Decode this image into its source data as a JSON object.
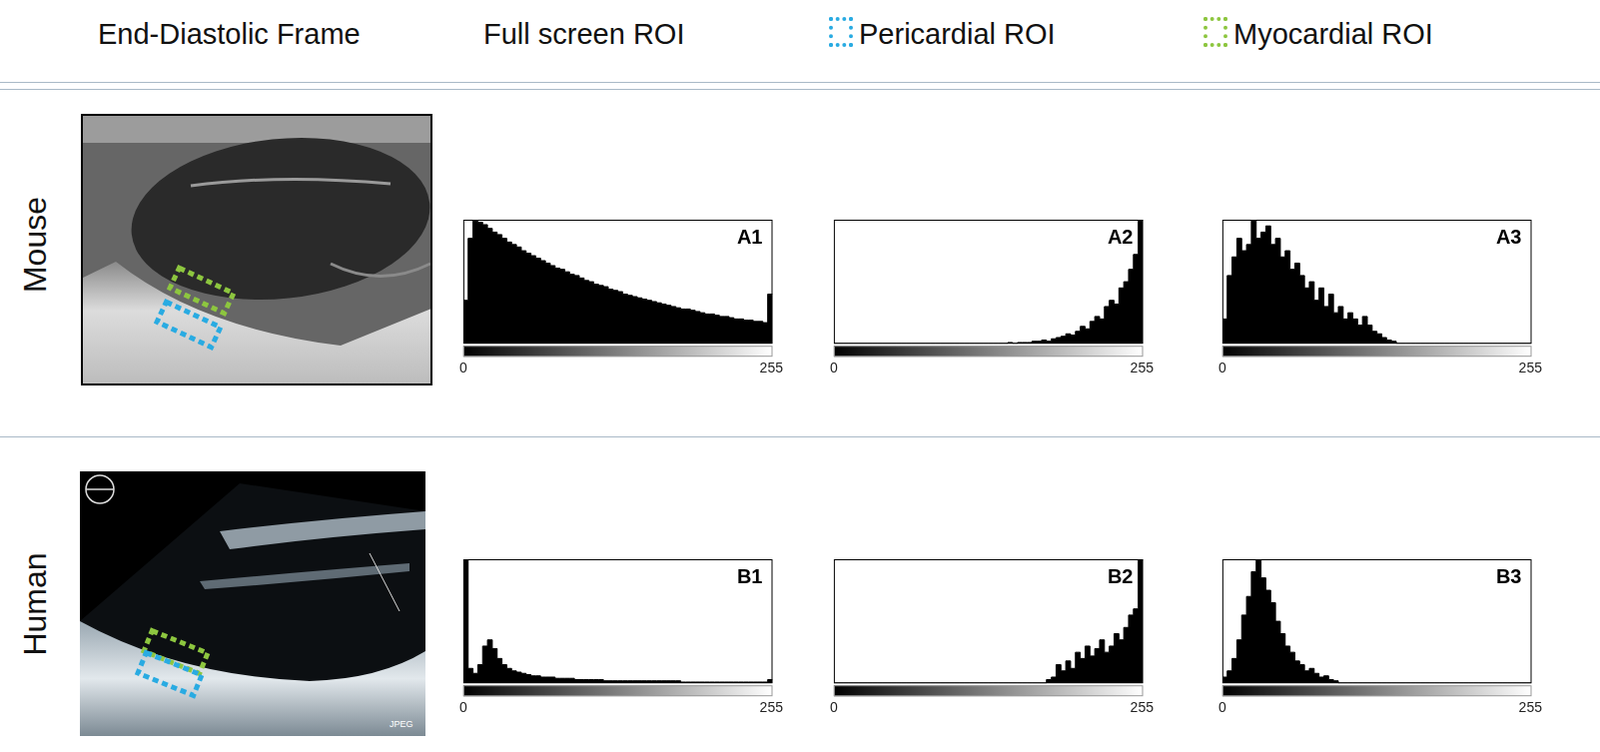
{
  "header": {
    "columns": [
      {
        "text": "End-Diastolic Frame"
      },
      {
        "text": "Full screen ROI"
      },
      {
        "text": "Pericardial ROI",
        "color": "#29abe2"
      },
      {
        "text": "Myocardial ROI",
        "color": "#8dc63f"
      }
    ]
  },
  "rows": [
    {
      "label": "Mouse"
    },
    {
      "label": "Human",
      "image_text": "JPEG"
    }
  ],
  "chart_data": [
    {
      "type": "histogram",
      "title": "A1",
      "color": "#000000",
      "grid": false,
      "tick_labels": "x",
      "xlim": [
        0,
        256
      ],
      "xticks": [
        0,
        255
      ],
      "ylim": [
        0,
        100
      ],
      "bins": [
        0,
        4,
        8,
        12,
        16,
        20,
        24,
        28,
        32,
        36,
        40,
        44,
        48,
        52,
        56,
        60,
        64,
        68,
        72,
        76,
        80,
        84,
        88,
        92,
        96,
        100,
        104,
        108,
        112,
        116,
        120,
        124,
        128,
        132,
        136,
        140,
        144,
        148,
        152,
        156,
        160,
        164,
        168,
        172,
        176,
        180,
        184,
        188,
        192,
        196,
        200,
        204,
        208,
        212,
        216,
        220,
        224,
        228,
        232,
        236,
        240,
        244,
        248,
        252,
        256
      ],
      "counts": [
        35,
        85,
        100,
        98,
        96,
        93,
        90,
        88,
        85,
        82,
        80,
        78,
        75,
        73,
        71,
        69,
        67,
        65,
        63,
        61,
        60,
        58,
        56,
        55,
        53,
        51,
        50,
        48,
        47,
        46,
        44,
        43,
        42,
        40,
        39,
        38,
        37,
        36,
        35,
        34,
        33,
        32,
        31,
        30,
        29,
        28,
        28,
        27,
        26,
        25,
        24,
        24,
        23,
        22,
        22,
        21,
        20,
        20,
        19,
        19,
        18,
        18,
        17,
        40
      ]
    },
    {
      "type": "histogram",
      "title": "A2",
      "color": "#000000",
      "grid": false,
      "tick_labels": "x",
      "xlim": [
        0,
        256
      ],
      "xticks": [
        0,
        255
      ],
      "ylim": [
        0,
        100
      ],
      "bins": [
        0,
        4,
        8,
        12,
        16,
        20,
        24,
        28,
        32,
        36,
        40,
        44,
        48,
        52,
        56,
        60,
        64,
        68,
        72,
        76,
        80,
        84,
        88,
        92,
        96,
        100,
        104,
        108,
        112,
        116,
        120,
        124,
        128,
        132,
        136,
        140,
        144,
        148,
        152,
        156,
        160,
        164,
        168,
        172,
        176,
        180,
        184,
        188,
        192,
        196,
        200,
        204,
        208,
        212,
        216,
        220,
        224,
        228,
        232,
        236,
        240,
        244,
        248,
        252,
        256
      ],
      "counts": [
        0,
        0,
        0,
        0,
        0,
        0,
        0,
        0,
        0,
        0,
        0,
        0,
        0,
        0,
        0,
        0,
        0,
        0,
        0,
        0,
        0,
        0,
        0,
        0,
        0,
        0,
        0,
        0,
        0,
        0,
        0,
        0,
        0,
        0,
        0,
        0,
        1,
        0,
        1,
        1,
        1,
        2,
        2,
        3,
        2,
        4,
        5,
        6,
        8,
        7,
        10,
        14,
        12,
        18,
        22,
        20,
        30,
        35,
        32,
        45,
        50,
        60,
        72,
        100
      ]
    },
    {
      "type": "histogram",
      "title": "A3",
      "color": "#000000",
      "grid": false,
      "tick_labels": "x",
      "xlim": [
        0,
        256
      ],
      "xticks": [
        0,
        255
      ],
      "ylim": [
        0,
        100
      ],
      "bins": [
        0,
        4,
        8,
        12,
        16,
        20,
        24,
        28,
        32,
        36,
        40,
        44,
        48,
        52,
        56,
        60,
        64,
        68,
        72,
        76,
        80,
        84,
        88,
        92,
        96,
        100,
        104,
        108,
        112,
        116,
        120,
        124,
        128,
        132,
        136,
        140,
        144,
        148,
        152,
        156,
        160,
        164,
        168,
        172,
        176,
        180,
        184,
        188,
        192,
        196,
        200,
        204,
        208,
        212,
        216,
        220,
        224,
        228,
        232,
        236,
        240,
        244,
        248,
        252,
        256
      ],
      "counts": [
        20,
        55,
        70,
        85,
        75,
        80,
        100,
        85,
        90,
        95,
        80,
        85,
        70,
        75,
        60,
        65,
        55,
        45,
        50,
        35,
        45,
        30,
        40,
        25,
        30,
        20,
        25,
        20,
        15,
        22,
        15,
        10,
        8,
        5,
        3,
        2,
        0,
        0,
        0,
        0,
        0,
        0,
        0,
        0,
        0,
        0,
        0,
        0,
        0,
        0,
        0,
        0,
        0,
        0,
        0,
        0,
        0,
        0,
        0,
        0,
        0,
        0,
        0,
        0
      ]
    },
    {
      "type": "histogram",
      "title": "B1",
      "color": "#000000",
      "grid": false,
      "tick_labels": "x",
      "xlim": [
        0,
        256
      ],
      "xticks": [
        0,
        255
      ],
      "ylim": [
        0,
        100
      ],
      "bins": [
        0,
        4,
        8,
        12,
        16,
        20,
        24,
        28,
        32,
        36,
        40,
        44,
        48,
        52,
        56,
        60,
        64,
        68,
        72,
        76,
        80,
        84,
        88,
        92,
        96,
        100,
        104,
        108,
        112,
        116,
        120,
        124,
        128,
        132,
        136,
        140,
        144,
        148,
        152,
        156,
        160,
        164,
        168,
        172,
        176,
        180,
        184,
        188,
        192,
        196,
        200,
        204,
        208,
        212,
        216,
        220,
        224,
        228,
        232,
        236,
        240,
        244,
        248,
        252,
        256
      ],
      "counts": [
        100,
        12,
        8,
        15,
        30,
        35,
        28,
        20,
        15,
        12,
        10,
        9,
        8,
        7,
        6,
        6,
        5,
        5,
        5,
        4,
        4,
        4,
        4,
        3,
        3,
        3,
        3,
        3,
        3,
        2,
        2,
        2,
        2,
        2,
        2,
        2,
        2,
        2,
        2,
        2,
        2,
        2,
        2,
        2,
        2,
        1,
        1,
        1,
        1,
        1,
        1,
        1,
        1,
        1,
        1,
        1,
        1,
        1,
        1,
        1,
        1,
        1,
        1,
        3
      ]
    },
    {
      "type": "histogram",
      "title": "B2",
      "color": "#000000",
      "grid": false,
      "tick_labels": "x",
      "xlim": [
        0,
        256
      ],
      "xticks": [
        0,
        255
      ],
      "ylim": [
        0,
        100
      ],
      "bins": [
        0,
        4,
        8,
        12,
        16,
        20,
        24,
        28,
        32,
        36,
        40,
        44,
        48,
        52,
        56,
        60,
        64,
        68,
        72,
        76,
        80,
        84,
        88,
        92,
        96,
        100,
        104,
        108,
        112,
        116,
        120,
        124,
        128,
        132,
        136,
        140,
        144,
        148,
        152,
        156,
        160,
        164,
        168,
        172,
        176,
        180,
        184,
        188,
        192,
        196,
        200,
        204,
        208,
        212,
        216,
        220,
        224,
        228,
        232,
        236,
        240,
        244,
        248,
        252,
        256
      ],
      "counts": [
        0,
        0,
        0,
        0,
        0,
        0,
        0,
        0,
        0,
        0,
        0,
        0,
        0,
        0,
        0,
        0,
        0,
        0,
        0,
        0,
        0,
        0,
        0,
        0,
        0,
        0,
        0,
        0,
        0,
        0,
        0,
        0,
        0,
        0,
        0,
        0,
        0,
        0,
        0,
        0,
        0,
        0,
        0,
        0,
        3,
        5,
        15,
        10,
        18,
        12,
        25,
        20,
        30,
        22,
        28,
        35,
        25,
        30,
        40,
        35,
        45,
        55,
        60,
        100
      ]
    },
    {
      "type": "histogram",
      "title": "B3",
      "color": "#000000",
      "grid": false,
      "tick_labels": "x",
      "xlim": [
        0,
        256
      ],
      "xticks": [
        0,
        255
      ],
      "ylim": [
        0,
        100
      ],
      "bins": [
        0,
        4,
        8,
        12,
        16,
        20,
        24,
        28,
        32,
        36,
        40,
        44,
        48,
        52,
        56,
        60,
        64,
        68,
        72,
        76,
        80,
        84,
        88,
        92,
        96,
        100,
        104,
        108,
        112,
        116,
        120,
        124,
        128,
        132,
        136,
        140,
        144,
        148,
        152,
        156,
        160,
        164,
        168,
        172,
        176,
        180,
        184,
        188,
        192,
        196,
        200,
        204,
        208,
        212,
        216,
        220,
        224,
        228,
        232,
        236,
        240,
        244,
        248,
        252,
        256
      ],
      "counts": [
        5,
        10,
        20,
        35,
        55,
        70,
        90,
        100,
        85,
        75,
        65,
        50,
        40,
        30,
        25,
        18,
        15,
        10,
        12,
        8,
        5,
        6,
        3,
        2,
        0,
        0,
        0,
        0,
        0,
        0,
        0,
        0,
        0,
        0,
        0,
        0,
        0,
        0,
        0,
        0,
        0,
        0,
        0,
        0,
        0,
        0,
        0,
        0,
        0,
        0,
        0,
        0,
        0,
        0,
        0,
        0,
        0,
        0,
        0,
        0,
        0,
        0,
        0,
        0
      ]
    }
  ]
}
